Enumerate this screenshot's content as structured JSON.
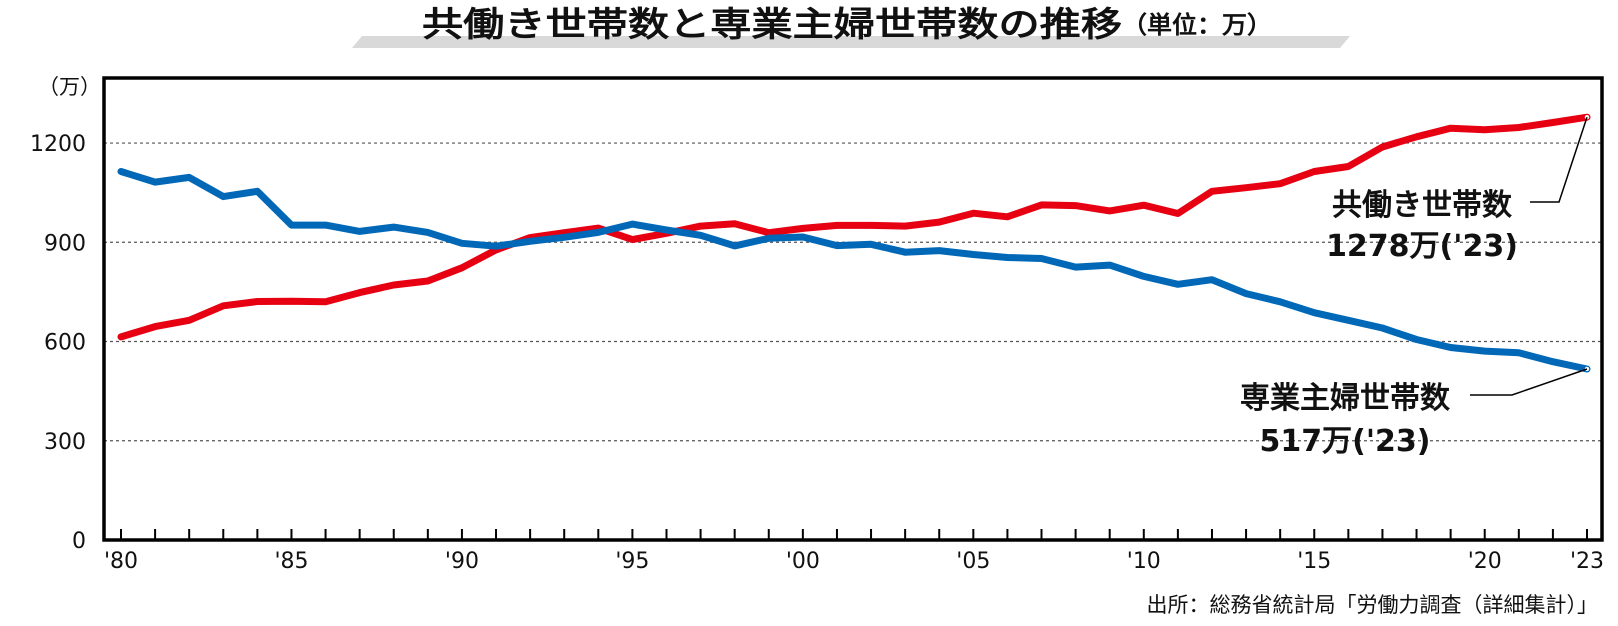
{
  "title": "共働き世帯数と専業主婦世帯数の推移",
  "title_unit": "（単位：万）",
  "source": "出所：総務省統計局「労働力調査（詳細集計）」",
  "chart_data": {
    "type": "line",
    "y_unit_label": "（万）",
    "ylim": [
      0,
      1300
    ],
    "y_ticks": [
      0,
      300,
      600,
      900,
      1200
    ],
    "y_tick_labels": [
      "0",
      "300",
      "600",
      "900",
      "1200"
    ],
    "x_range": [
      1980,
      2023
    ],
    "x_tick_values": [
      1980,
      1985,
      1990,
      1995,
      2000,
      2005,
      2010,
      2015,
      2020,
      2023
    ],
    "x_tick_labels": [
      "'80",
      "'85",
      "'90",
      "'95",
      "'00",
      "'05",
      "'10",
      "'15",
      "'20",
      "'23"
    ],
    "grid": "horizontal dashed",
    "x": [
      1980,
      1981,
      1982,
      1983,
      1984,
      1985,
      1986,
      1987,
      1988,
      1989,
      1990,
      1991,
      1992,
      1993,
      1994,
      1995,
      1996,
      1997,
      1998,
      1999,
      2000,
      2001,
      2002,
      2003,
      2004,
      2005,
      2006,
      2007,
      2008,
      2009,
      2010,
      2011,
      2012,
      2013,
      2014,
      2015,
      2016,
      2017,
      2018,
      2019,
      2020,
      2021,
      2022,
      2023
    ],
    "series": [
      {
        "name": "共働き世帯数",
        "color": "#e60012",
        "values": [
          614,
          645,
          664,
          708,
          721,
          722,
          720,
          748,
          771,
          783,
          823,
          877,
          914,
          929,
          943,
          908,
          927,
          949,
          956,
          929,
          942,
          951,
          951,
          949,
          961,
          988,
          977,
          1013,
          1011,
          995,
          1012,
          987,
          1054,
          1065,
          1077,
          1114,
          1129,
          1188,
          1219,
          1245,
          1240,
          1247,
          1262,
          1278
        ]
      },
      {
        "name": "専業主婦世帯数",
        "color": "#0068b7",
        "values": [
          1114,
          1082,
          1096,
          1038,
          1054,
          952,
          952,
          933,
          946,
          930,
          897,
          888,
          903,
          915,
          930,
          955,
          937,
          921,
          889,
          912,
          916,
          890,
          894,
          870,
          875,
          863,
          854,
          851,
          825,
          831,
          797,
          773,
          787,
          745,
          720,
          687,
          664,
          641,
          606,
          582,
          571,
          566,
          539,
          517
        ]
      }
    ],
    "annotations": [
      {
        "series": "共働き世帯数",
        "label": "共働き世帯数",
        "value_label": "1278万('23)"
      },
      {
        "series": "専業主婦世帯数",
        "label": "専業主婦世帯数",
        "value_label": "517万('23)"
      }
    ]
  }
}
